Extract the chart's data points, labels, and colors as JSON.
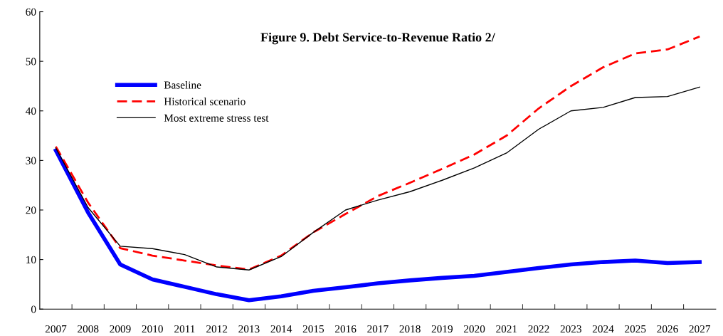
{
  "chart_data": {
    "type": "line",
    "title": "Figure 9. Debt Service-to-Revenue Ratio 2/",
    "categories": [
      "2007",
      "2008",
      "2009",
      "2010",
      "2011",
      "2012",
      "2013",
      "2014",
      "2015",
      "2016",
      "2017",
      "2018",
      "2019",
      "2020",
      "2021",
      "2022",
      "2023",
      "2024",
      "2025",
      "2026",
      "2027"
    ],
    "series": [
      {
        "name": "Baseline",
        "color": "#0000ff",
        "line_style": "solid",
        "values": [
          32,
          19.5,
          9,
          6,
          4.5,
          3,
          1.8,
          2.6,
          3.7,
          4.4,
          5.2,
          5.8,
          6.3,
          6.7,
          7.5,
          8.3,
          9,
          9.5,
          9.8,
          9.3,
          9.5
        ]
      },
      {
        "name": "Historical scenario",
        "color": "#ff0000",
        "line_style": "dashed",
        "values": [
          32.8,
          21.5,
          12.3,
          10.8,
          9.8,
          8.8,
          8.0,
          10.8,
          15.5,
          19.2,
          22.8,
          25.5,
          28.3,
          31.2,
          35,
          40.5,
          45,
          48.8,
          51.6,
          52.4,
          55
        ]
      },
      {
        "name": "Most extreme stress test",
        "color": "#000000",
        "line_style": "solid",
        "values": [
          32.5,
          20.5,
          12.7,
          12.2,
          11,
          8.5,
          7.9,
          10.6,
          15.5,
          20,
          22,
          23.7,
          26,
          28.5,
          31.5,
          36.3,
          40,
          40.7,
          42.7,
          42.9,
          44.8
        ]
      }
    ],
    "ylim": [
      0,
      60
    ],
    "yticks": [
      0,
      10,
      20,
      30,
      40,
      50,
      60
    ],
    "grid": false,
    "legend": "top left",
    "marker": "none"
  }
}
